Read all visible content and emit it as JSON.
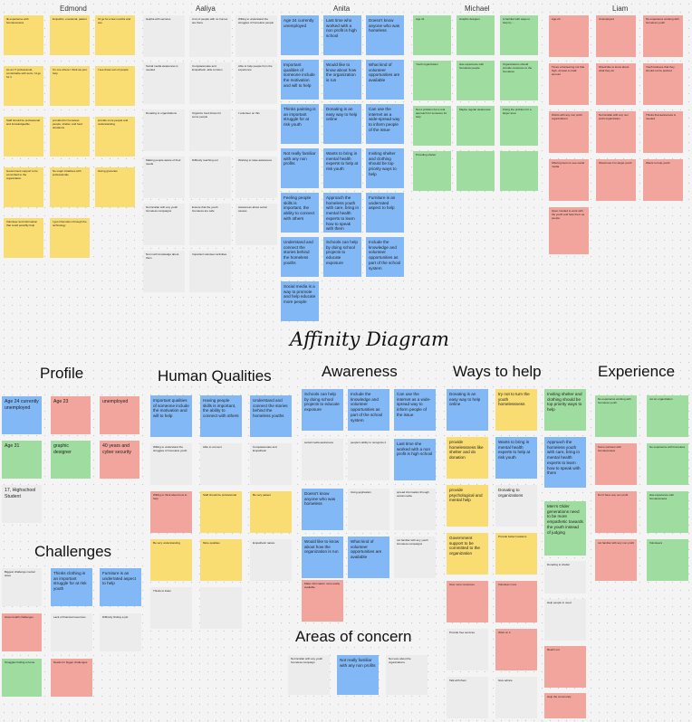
{
  "title": "Affinity Diagram",
  "participants": [
    "Edmond",
    "Aaliya",
    "Anita",
    "Michael",
    "Liam"
  ],
  "categories": {
    "profile": "Profile",
    "human": "Human Qualities",
    "awareness": "Awareness",
    "ways": "Ways to help",
    "experience": "Experience",
    "challenges": "Challenges",
    "concern": "Areas of concern"
  },
  "top": {
    "edmond": [
      "IE experience with homelessness",
      "Empathic, emotional, patient",
      "I'd go for a few months and see",
      "As an IT professional, comfortable with texts, I'd go for it",
      "It's one where I think we just help",
      "I see those sort of people",
      "Staff should be professional and knowledgeable",
      "provided for homeless people, shelter, and food donations",
      "provide more people and understanding",
      "Government support to be committed to the organization",
      "No major initiatives with professionals",
      "Giving groceries",
      "Volunteer and information that could possibly help",
      "I got information through the technology"
    ],
    "aaliya": [
      "Helpful with services",
      "A lot of people with no homes are there",
      "Willing to understand the struggles of homeless people",
      "Social media awareness is needed",
      "Compassionate and Empathetic, able to listen",
      "Able to help people from the experience",
      "Donating to organizations",
      "Organize food drives for some people",
      "I volunteer on this",
      "Making people aware of their needs",
      "Difficulty reaching out",
      "Working to raise awareness",
      "Not familiar with any youth homeless campaigns",
      "Ensure that the youth homeless are safe",
      "Awareness about social causes",
      "Not much knowledge about them",
      "Important volunteer activities",
      "Donate to outreach"
    ],
    "anita": [
      "Age 24 currently unemployed",
      "Last time who worked with a non profit is high school",
      "Doesn't know anyone who was homeless",
      "Important qualities of someone include the motivation and will to help",
      "Would like to know about how the organization is run",
      "What kind of volunteer opportunities are available",
      "Thinks painting is an important struggle for at risk youth",
      "Donating is an easy way to help online",
      "Can use the internet as a wide-spread way to inform people of the issue",
      "Not really familiar with any non profits",
      "Wants to bring in mental health experts to help at risk youth",
      "Inviting shelter and clothing should be top priority ways to help",
      "Feeling people skills is important, the ability to connect with others",
      "Approach the homeless youth with care, bring in mental health experts to learn how to speak with them",
      "Furniture is an underrated aspect to help",
      "Understand and connect the stories behind the homeless youths",
      "Schools can help by doing school projects to educate exposure",
      "Include the knowledge and volunteer opportunities as part of the school system",
      "Social media is a way to promote and help educate more people"
    ],
    "michael": [
      "Age 31",
      "Graphic designer",
      "Is familiar with ways to help by ...",
      "Youth organization",
      "Has experience with homeless people",
      "Organizations should provide resources to the homeless",
      "Not a problem but a real approach for someone for help",
      "Maybe regular awareness",
      "Fixing the problem for a larger area",
      "Providing shelter"
    ],
    "liam": [
      "Age 24",
      "Unemployed",
      "No experience working with homeless youth",
      "Times volunteering not that high, at least a small amount",
      "Would like to know about what they do",
      "Youth believes that they should not be pushed",
      "Works with any non profit organizations",
      "Not familiar with any non profit organization",
      "Thinks that awareness is needed",
      "Offering items to see social media",
      "Would use it to target youth",
      "Wants to help youth",
      "Open minded to work with the youth and help them as people"
    ]
  },
  "bottom": {
    "profile": [
      "Age 24 currently unemployed",
      "Age 23",
      "unemployed",
      "Age 31",
      "graphic designer",
      "40 years and cyber security",
      "17, Highschool Student"
    ],
    "human": [
      "Important qualities of someone include the motivation and will to help",
      "Having people skills is important, the ability to connect with others",
      "Understand and connect the stories behind the homeless youths",
      "Willing to understand the struggles of homeless youth",
      "Able to connect",
      "Compassionate and Empathetic",
      "Willing to think about how to help",
      "Staff should be professional",
      "Be very patient",
      "Be very understanding",
      "More qualities",
      "Empathetic nature",
      "Thinks to listen"
    ],
    "awareness": [
      "Schools can help by doing school projects to educate exposure",
      "Include the knowledge and volunteer opportunities as part of the school system",
      "Can use the internet as a wide-spread way to inform people of the issue",
      "social media awareness",
      "people's ability to recognize it",
      "Last time she worked with a non profit is high school",
      "Doesn't know anyone who was homeless",
      "Using application",
      "spread information through social media",
      "Would like to know about how the organization is run",
      "What kind of volunteer opportunities are available",
      "not familiar with any youth homeless campaigns",
      "Make information more easily available"
    ],
    "ways": [
      "Donating is an easy way to help online",
      "try not to turn the youth homelessness",
      "Inviting shelter and clothing should be top priority ways to help",
      "provide homelessness like shelter and do donation",
      "Wants to bring in mental health experts to help at risk youth",
      "Approach the homeless youth with care, bring in mental health experts to learn how to speak with them",
      "provide psychological and mental help",
      "Donating to organizations",
      "Men's Older generations need to be more empathetic towards the youth instead of judging",
      "Government support to be committed to the organization",
      "Provide better locations",
      "Donating to shelter",
      "Give more resources",
      "Volunteer more",
      "Help people in need",
      "Provide free services",
      "Work on it",
      "Reach out",
      "Talk with them",
      "Give advice",
      "Help the community"
    ],
    "experience": [
      "No experience working with homeless youth",
      "not an organization",
      "Some partners with homelessness",
      "No experience with homeless",
      "Don't have any non profit",
      "Has experience with homelessness",
      "not familiar with any non profit",
      "Volunteers"
    ],
    "challenges": [
      "Biggest challenge mental issue",
      "Thinks clothing is an important struggle for at risk youth",
      "Furniture is an underrated aspect to help",
      "Gives health challenges",
      "Lack of financial resources",
      "Difficulty finding a job",
      "Struggles finding a home",
      "Needs for bigger challenges"
    ],
    "concern": [
      "Not familiar with any youth homeless campaign",
      "Not really familiar with any non profits",
      "Not sure about the organizations"
    ]
  },
  "colors": {
    "yellow": "#f9dc72",
    "grey": "#ececec",
    "blue": "#82b8f5",
    "green": "#9fdc9f",
    "red": "#f2a59c"
  }
}
